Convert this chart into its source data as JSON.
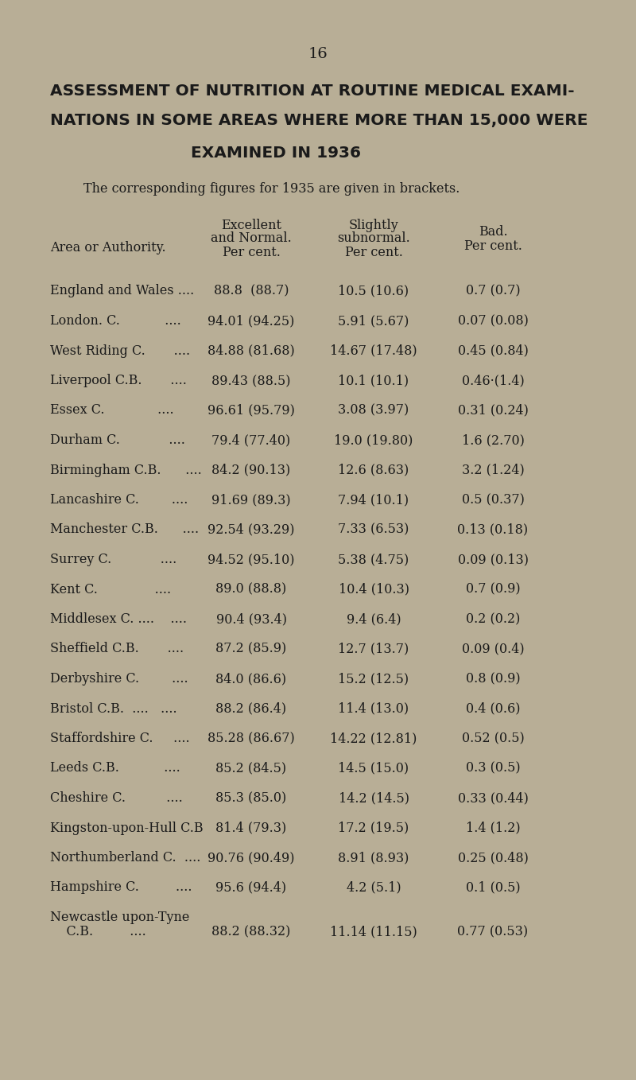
{
  "page_number": "16",
  "title_line1": "ASSESSMENT OF NUTRITION AT ROUTINE MEDICAL EXAMI-",
  "title_line2": "NATIONS IN SOME AREAS WHERE MORE THAN 15,000 WERE",
  "title_line3": "EXAMINED IN 1936",
  "subtitle": "The corresponding figures for 1935 are given in brackets.",
  "bg_color": "#b8ae96",
  "text_color": "#1a1a1a",
  "rows": [
    [
      "England and Wales ....",
      "88.8  (88.7)",
      "10.5 (10.6)",
      "0.7 (0.7)"
    ],
    [
      "London. C.           ....",
      "94.01 (94.25)",
      "5.91 (5.67)",
      "0.07 (0.08)"
    ],
    [
      "West Riding C.       ....",
      "84.88 (81.68)",
      "14.67 (17.48)",
      "0.45 (0.84)"
    ],
    [
      "Liverpool C.B.       ....",
      "89.43 (88.5)",
      "10.1 (10.1)",
      "0.46·(1.4)"
    ],
    [
      "Essex C.             ....",
      "96.61 (95.79)",
      "3.08 (3.97)",
      "0.31 (0.24)"
    ],
    [
      "Durham C.            ....",
      "79.4 (77.40)",
      "19.0 (19.80)",
      "1.6 (2.70)"
    ],
    [
      "Birmingham C.B.      ....",
      "84.2 (90.13)",
      "12.6 (8.63)",
      "3.2 (1.24)"
    ],
    [
      "Lancashire C.        ....",
      "91.69 (89.3)",
      "7.94 (10.1)",
      "0.5 (0.37)"
    ],
    [
      "Manchester C.B.      ....",
      "92.54 (93.29)",
      "7.33 (6.53)",
      "0.13 (0.18)"
    ],
    [
      "Surrey C.            ....",
      "94.52 (95.10)",
      "5.38 (4.75)",
      "0.09 (0.13)"
    ],
    [
      "Kent C.              ....",
      "89.0 (88.8)",
      "10.4 (10.3)",
      "0.7 (0.9)"
    ],
    [
      "Middlesex C. ....    ....",
      "90.4 (93.4)",
      "9.4 (6.4)",
      "0.2 (0.2)"
    ],
    [
      "Sheffield C.B.       ....",
      "87.2 (85.9)",
      "12.7 (13.7)",
      "0.09 (0.4)"
    ],
    [
      "Derbyshire C.        ....",
      "84.0 (86.6)",
      "15.2 (12.5)",
      "0.8 (0.9)"
    ],
    [
      "Bristol C.B.  ....   ....",
      "88.2 (86.4)",
      "11.4 (13.0)",
      "0.4 (0.6)"
    ],
    [
      "Staffordshire C.     ....",
      "85.28 (86.67)",
      "14.22 (12.81)",
      "0.52 (0.5)"
    ],
    [
      "Leeds C.B.           ....",
      "85.2 (84.5)",
      "14.5 (15.0)",
      "0.3 (0.5)"
    ],
    [
      "Cheshire C.          ....",
      "85.3 (85.0)",
      "14.2 (14.5)",
      "0.33 (0.44)"
    ],
    [
      "Kingston-upon-Hull C.B",
      "81.4 (79.3)",
      "17.2 (19.5)",
      "1.4 (1.2)"
    ],
    [
      "Northumberland C.  ....",
      "90.76 (90.49)",
      "8.91 (8.93)",
      "0.25 (0.48)"
    ],
    [
      "Hampshire C.         ....",
      "95.6 (94.4)",
      "4.2 (5.1)",
      "0.1 (0.5)"
    ],
    [
      "Newcastle upon-Tyne",
      "88.2 (88.32)",
      "11.14 (11.15)",
      "0.77 (0.53)"
    ]
  ],
  "newcastle_cb_label": "    C.B.         ....",
  "title_fontsize": 14.5,
  "subtitle_fontsize": 11.5,
  "header_fontsize": 11.5,
  "row_fontsize": 11.5,
  "page_num_fontsize": 14
}
